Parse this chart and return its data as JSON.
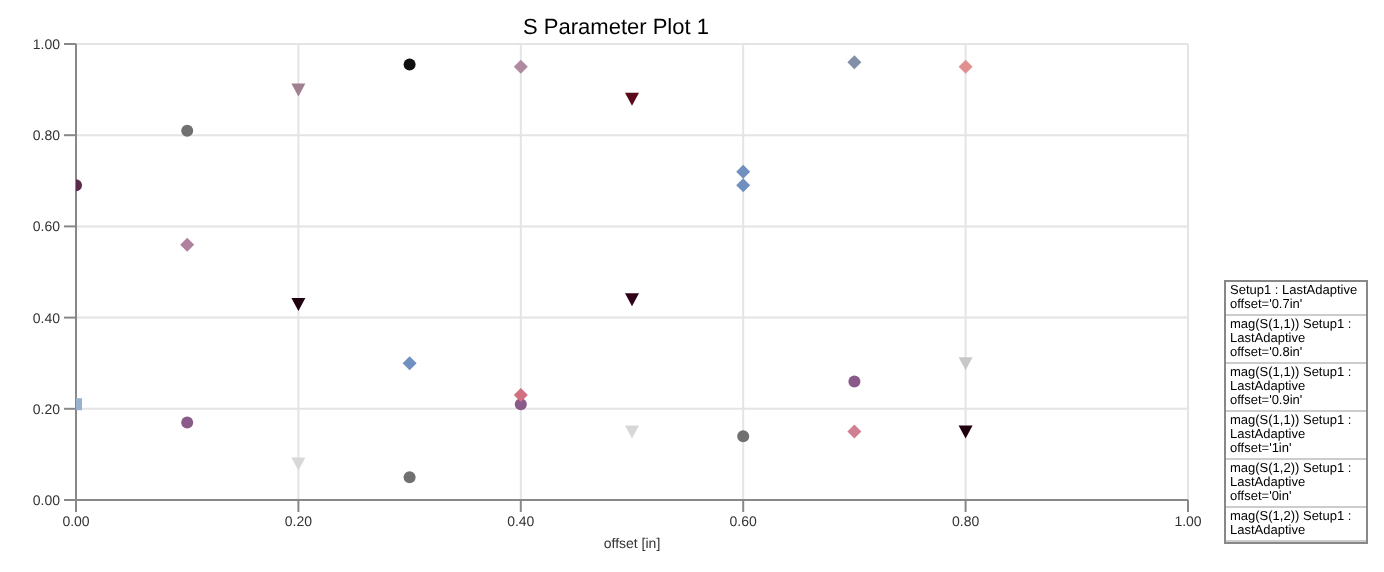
{
  "chart_data": {
    "type": "scatter",
    "title": "S Parameter Plot 1",
    "xlabel": "offset [in]",
    "xlim": [
      0,
      1
    ],
    "xticks": [
      {
        "value": 0,
        "label": "0.00"
      },
      {
        "value": 0.2,
        "label": "0.20"
      },
      {
        "value": 0.4,
        "label": "0.40"
      },
      {
        "value": 0.6,
        "label": "0.60"
      },
      {
        "value": 0.8,
        "label": "0.80"
      },
      {
        "value": 1,
        "label": "1.00"
      }
    ],
    "ylim": [
      0,
      1
    ],
    "yticks": [
      {
        "value": 0,
        "label": "0.00"
      },
      {
        "value": 0.2,
        "label": "0.20"
      },
      {
        "value": 0.4,
        "label": "0.40"
      },
      {
        "value": 0.6,
        "label": "0.60"
      },
      {
        "value": 0.8,
        "label": "0.80"
      },
      {
        "value": 1,
        "label": "1.00"
      }
    ],
    "grid": true,
    "legend": false,
    "series": [
      {
        "marker": "circle",
        "x": [
          0,
          0.1,
          0.1,
          0.3,
          0.3,
          0.4,
          0.6,
          0.7
        ],
        "values": [
          0.69,
          0.81,
          0.17,
          0.955,
          0.05,
          0.21,
          0.14,
          0.26
        ],
        "colors": [
          "#5a2a4a",
          "#707070",
          "#8a5a8a",
          "#101010",
          "#707070",
          "#8a5a8a",
          "#707070",
          "#8a5a8a"
        ]
      },
      {
        "marker": "triangle",
        "x": [
          0.2,
          0.2,
          0.2,
          0.5,
          0.5,
          0.5,
          0.8,
          0.8
        ],
        "values": [
          0.9,
          0.43,
          0.08,
          0.88,
          0.44,
          0.15,
          0.3,
          0.15
        ],
        "colors": [
          "#a08090",
          "#200010",
          "#d8d8d8",
          "#5a0a1a",
          "#300018",
          "#d8d8d8",
          "#c8c8c8",
          "#200010"
        ]
      },
      {
        "marker": "square",
        "x": [
          0
        ],
        "values": [
          0.21
        ],
        "colors": [
          "#9ab0d0"
        ]
      },
      {
        "marker": "diamond",
        "x": [
          0.1,
          0.4,
          0.4,
          0.6,
          0.7,
          0.3,
          0.6,
          0.7,
          0.8
        ],
        "values": [
          0.56,
          0.95,
          0.23,
          0.72,
          0.15,
          0.3,
          0.69,
          0.96,
          0.95
        ],
        "colors": [
          "#b080a0",
          "#b08aa0",
          "#d07080",
          "#7090c0",
          "#d08090",
          "#7090c0",
          "#7090c0",
          "#8090a8",
          "#e09090"
        ]
      }
    ],
    "annotations": [
      "Setup1 : LastAdaptive offset='0.7in'",
      "mag(S(1,1)) Setup1 : LastAdaptive offset='0.8in'",
      "mag(S(1,1)) Setup1 : LastAdaptive offset='0.9in'",
      "mag(S(1,1)) Setup1 : LastAdaptive offset='1in'",
      "mag(S(1,2)) Setup1 : LastAdaptive offset='0in'",
      "mag(S(1,2)) Setup1 : LastAdaptive"
    ]
  }
}
